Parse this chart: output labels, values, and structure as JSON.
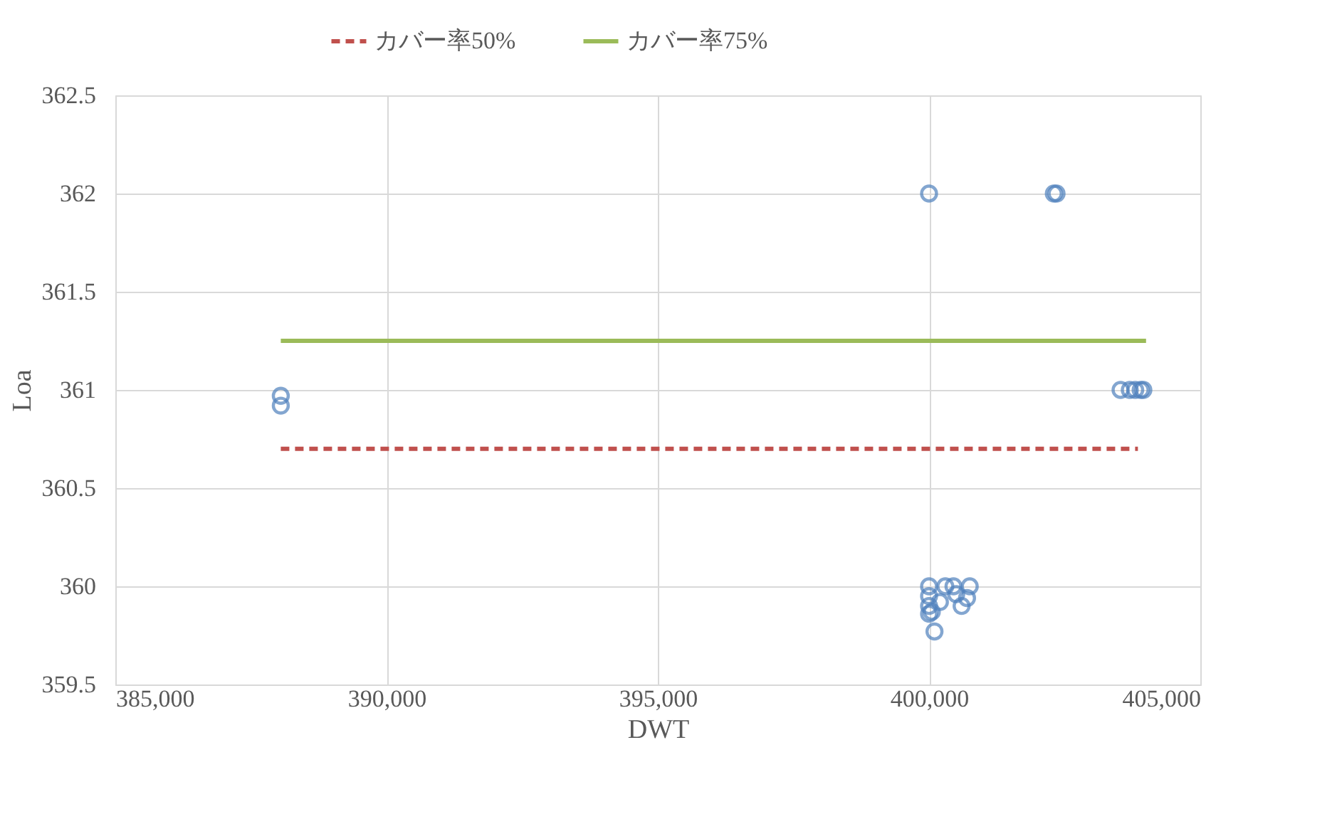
{
  "chart_data": {
    "type": "scatter",
    "xlabel": "DWT",
    "ylabel": "Loa",
    "xlim": [
      385000,
      405000
    ],
    "xticks": [
      {
        "value": 385000,
        "label": "385,000"
      },
      {
        "value": 390000,
        "label": "390,000"
      },
      {
        "value": 395000,
        "label": "395,000"
      },
      {
        "value": 400000,
        "label": "400,000"
      },
      {
        "value": 405000,
        "label": "405,000"
      }
    ],
    "ylim": [
      359.5,
      362.5
    ],
    "yticks": [
      359.5,
      360,
      360.5,
      361,
      361.5,
      362,
      362.5
    ],
    "grid": true,
    "legend": "top",
    "series": [
      {
        "marker": "circle",
        "color": "#4f81bd",
        "x": [
          400000,
          402300,
          402350,
          388050,
          388050,
          403530,
          403700,
          403800,
          403900,
          403950,
          400000,
          400000,
          400000,
          400050,
          400100,
          400300,
          400450,
          400500,
          400600,
          400700,
          400750,
          400200,
          400000
        ],
        "values": [
          362,
          362,
          362,
          360.97,
          360.92,
          361,
          361,
          361,
          361,
          361,
          360,
          359.95,
          359.9,
          359.87,
          359.77,
          360,
          360,
          359.96,
          359.9,
          359.94,
          360,
          359.92,
          359.86
        ]
      },
      {
        "type": "line",
        "name": "カバー率50%",
        "color": "#c0504d",
        "line_style": "dashed",
        "x": [
          388050,
          403850
        ],
        "values": [
          360.7,
          360.7
        ]
      },
      {
        "type": "line",
        "name": "カバー率75%",
        "color": "#9bbb59",
        "line_style": "solid",
        "x": [
          388050,
          404000
        ],
        "values": [
          361.25,
          361.25
        ]
      }
    ]
  }
}
